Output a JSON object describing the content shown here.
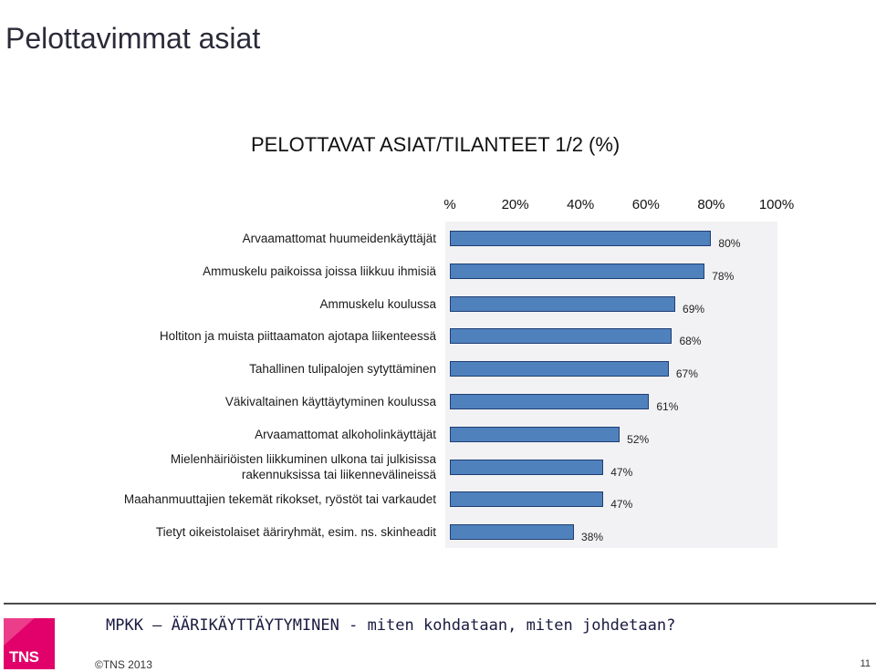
{
  "page": {
    "title": "Pelottavimmat asiat",
    "footer_title": "MPKK – ÄÄRIKÄYTTÄYTYMINEN - miten kohdataan, miten johdetaan?",
    "copyright": "©TNS 2013",
    "page_number": "11",
    "logo_text": "TNS"
  },
  "colors": {
    "bar_fill": "#4f81bd",
    "bar_border": "#1f3f73",
    "plot_bg": "#f2f2f4",
    "logo": "#e2006a"
  },
  "chart_data": {
    "type": "bar",
    "orientation": "horizontal",
    "title": "PELOTTAVAT ASIAT/TILANTEET 1/2 (%)",
    "xlim": [
      0,
      100
    ],
    "x_tick_labels": [
      "%",
      "20%",
      "40%",
      "60%",
      "80%",
      "100%"
    ],
    "categories": [
      "Arvaamattomat huumeidenkäyttäjät",
      "Ammuskelu paikoissa joissa liikkuu ihmisiä",
      "Ammuskelu koulussa",
      "Holtiton ja muista piittaamaton ajotapa liikenteessä",
      "Tahallinen tulipalojen sytyttäminen",
      "Väkivaltainen käyttäytyminen koulussa",
      "Arvaamattomat alkoholinkäyttäjät",
      "Mielenhäiriöisten liikkuminen ulkona tai julkisissa\nrakennuksissa tai liikennevälineissä",
      "Maahanmuuttajien tekemät rikokset, ryöstöt tai varkaudet",
      "Tietyt oikeistolaiset ääriryhmät, esim. ns. skinheadit"
    ],
    "values": [
      80,
      78,
      69,
      68,
      67,
      61,
      52,
      47,
      47,
      38
    ],
    "value_labels": [
      "80%",
      "78%",
      "69%",
      "68%",
      "67%",
      "61%",
      "52%",
      "47%",
      "47%",
      "38%"
    ]
  }
}
